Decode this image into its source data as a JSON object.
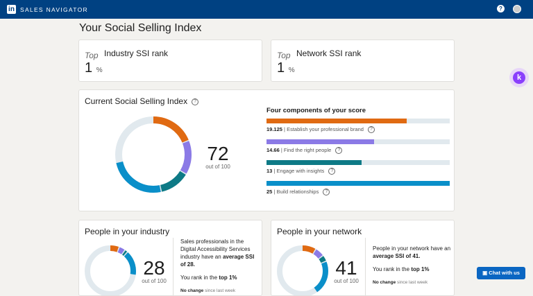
{
  "header": {
    "brand": "SALES NAVIGATOR",
    "logo": "in",
    "help_icon": "?"
  },
  "page_title": "Your Social Selling Index",
  "industry_rank": {
    "prefix": "Top",
    "label": "Industry SSI rank",
    "value": "1",
    "unit": "%"
  },
  "network_rank": {
    "prefix": "Top",
    "label": "Network SSI rank",
    "value": "1",
    "unit": "%"
  },
  "ssi": {
    "title": "Current Social Selling Index",
    "score": "72",
    "out_of": "out of 100",
    "components_title": "Four components of your score",
    "components": [
      {
        "value": 19.125,
        "label": "Establish your professional brand",
        "color": "#e06a12"
      },
      {
        "value": 14.66,
        "label": "Find the right people",
        "color": "#8b7ae6"
      },
      {
        "value": 13,
        "label": "Engage with insights",
        "color": "#0e7a86"
      },
      {
        "value": 25,
        "label": "Build relationships",
        "color": "#0a8fc9"
      }
    ],
    "max_per_component": 25
  },
  "industry": {
    "title": "People in your industry",
    "score": "28",
    "out_of": "out of 100",
    "text_pre": "Sales professionals in the Digital Accessibility Services industry have an ",
    "text_bold": "average SSI of 28.",
    "rank_pre": "You rank in the ",
    "rank_bold": "top 1%",
    "change_bold": "No change",
    "change_rest": " since last week",
    "segments": [
      6,
      4,
      2,
      16
    ]
  },
  "network": {
    "title": "People in your network",
    "score": "41",
    "out_of": "out of 100",
    "text_pre": "People in your network have an ",
    "text_bold": "average SSI of 41.",
    "rank_pre": "You rank in the ",
    "rank_bold": "top 1%",
    "change_bold": "No change",
    "change_rest": " since last week",
    "segments": [
      9,
      6,
      4,
      22
    ]
  },
  "chat_button": "Chat with us",
  "track_color": "#e1e9ee"
}
